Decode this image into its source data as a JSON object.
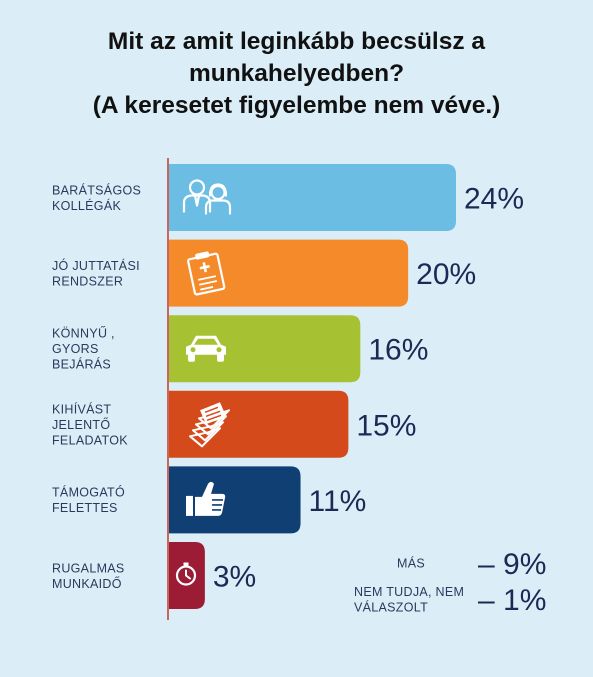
{
  "chart_data": {
    "type": "bar",
    "orientation": "horizontal",
    "title_lines": [
      "Mit az amit leginkább becsülsz a",
      "munkahelyedben?",
      "(A keresetet figyelembe nem  véve.)"
    ],
    "categories": [
      [
        "BARÁTSÁGOS",
        "KOLLÉGÁK"
      ],
      [
        "JÓ JUTTATÁSI",
        "RENDSZER"
      ],
      [
        "KÖNNYŰ ,",
        "GYORS",
        "BEJÁRÁS"
      ],
      [
        "KIHÍVÁST",
        "JELENTŐ",
        "FELADATOK"
      ],
      [
        "TÁMOGATÓ",
        "FELETTES"
      ],
      [
        "RUGALMAS",
        "MUNKAIDŐ"
      ]
    ],
    "values": [
      24,
      20,
      16,
      15,
      11,
      3
    ],
    "value_labels": [
      "24%",
      "20%",
      "16%",
      "15%",
      "11%",
      "3%"
    ],
    "bar_colors": [
      "#6bbde3",
      "#f58a2b",
      "#a6c233",
      "#d54a1b",
      "#103f73",
      "#9b1c34"
    ],
    "icons": [
      "people-icon",
      "clipboard-icon",
      "car-icon",
      "papers-icon",
      "thumbs-up-icon",
      "clock-icon"
    ],
    "xlim": [
      0,
      24
    ],
    "grid": false,
    "other": [
      {
        "label": [
          "MÁS"
        ],
        "value": "– 9%"
      },
      {
        "label": [
          "NEM TUDJA, NEM",
          "VÁLASZOLT"
        ],
        "value": "– 1%"
      }
    ]
  }
}
